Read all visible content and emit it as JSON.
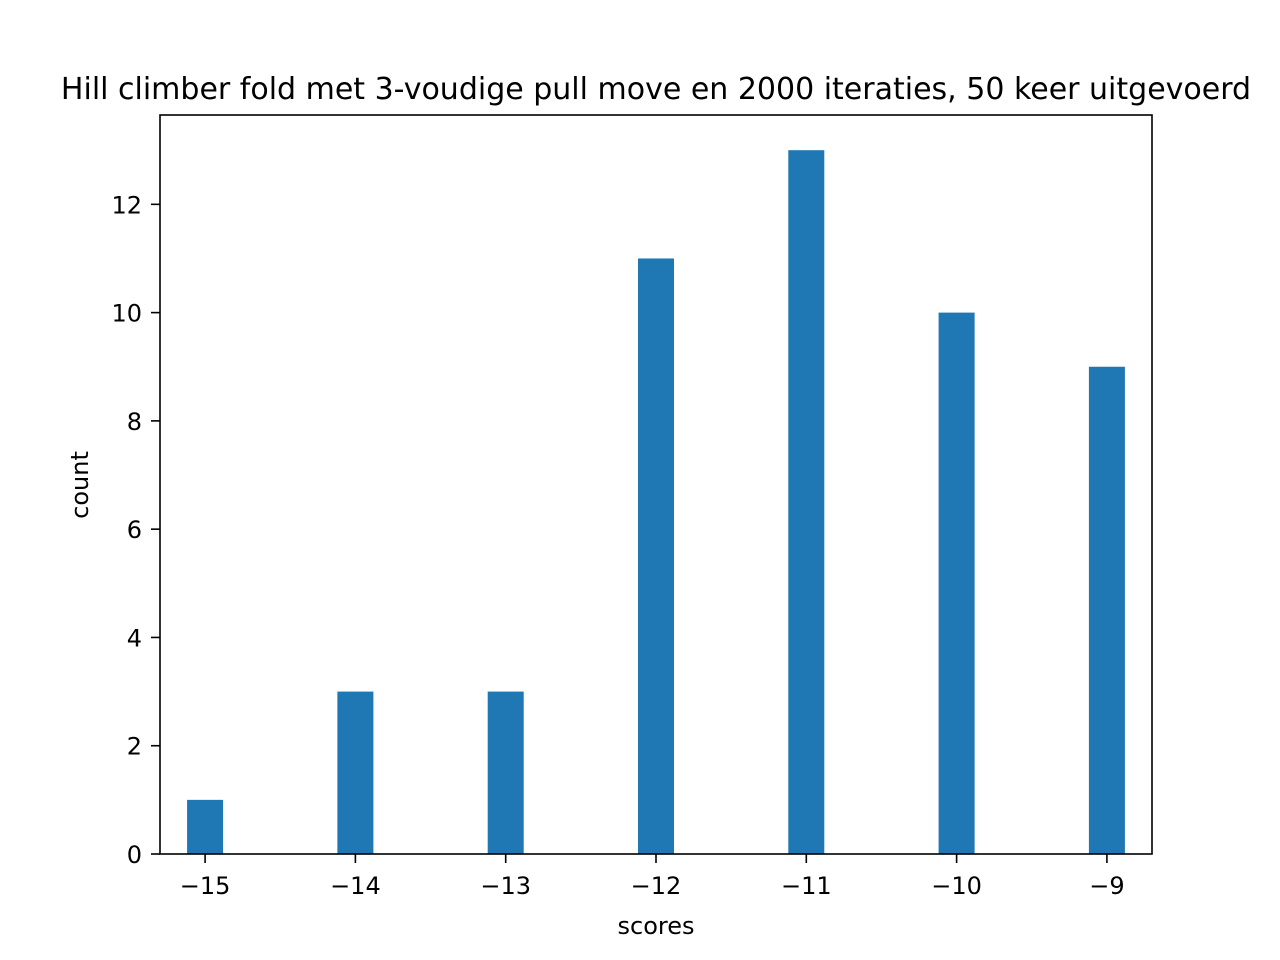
{
  "chart_data": {
    "type": "bar",
    "title": "Hill climber fold met 3-voudige pull move en 2000 iteraties, 50 keer uitgevoerd",
    "xlabel": "scores",
    "ylabel": "count",
    "x": [
      -15,
      -14,
      -13,
      -12,
      -11,
      -10,
      -9
    ],
    "values": [
      1,
      3,
      3,
      11,
      13,
      10,
      9
    ],
    "xlim": [
      -15.3,
      -8.7
    ],
    "ylim": [
      0,
      13.65
    ],
    "xticks": [
      -15,
      -14,
      -13,
      -12,
      -11,
      -10,
      -9
    ],
    "xtick_labels": [
      "−15",
      "−14",
      "−13",
      "−12",
      "−11",
      "−10",
      "−9"
    ],
    "yticks": [
      0,
      2,
      4,
      6,
      8,
      10,
      12
    ],
    "ytick_labels": [
      "0",
      "2",
      "4",
      "6",
      "8",
      "10",
      "12"
    ],
    "bar_color": "#1f77b4",
    "grid": false,
    "legend": "none"
  }
}
